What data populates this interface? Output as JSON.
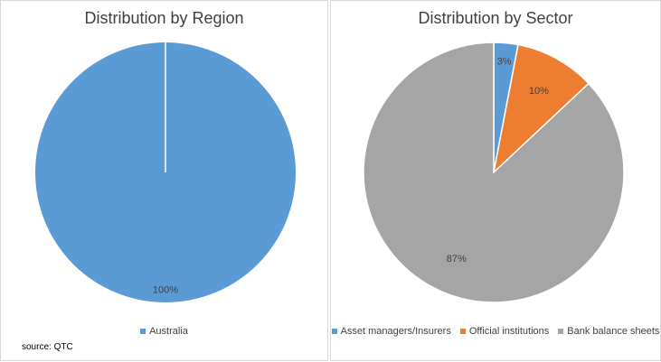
{
  "chart_data": [
    {
      "type": "pie",
      "title": "Distribution by Region",
      "categories": [
        "Australia"
      ],
      "values": [
        100
      ],
      "data_labels": [
        "100%"
      ],
      "colors": [
        "#5b9bd5"
      ],
      "legend_position": "bottom"
    },
    {
      "type": "pie",
      "title": "Distribution by Sector",
      "categories": [
        "Asset managers/Insurers",
        "Official institutions",
        "Bank balance sheets"
      ],
      "values": [
        3,
        10,
        87
      ],
      "data_labels": [
        "3%",
        "10%",
        "87%"
      ],
      "colors": [
        "#5b9bd5",
        "#ed7d31",
        "#a5a5a5"
      ],
      "legend_position": "bottom"
    }
  ],
  "source_note": "source: QTC"
}
